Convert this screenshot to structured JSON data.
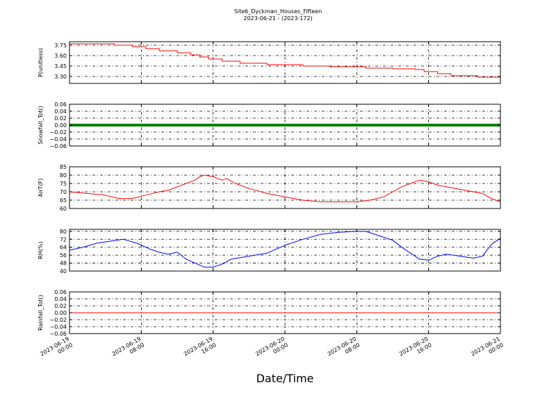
{
  "chart_data": {
    "type": "line",
    "title": "Site6_Dyckman_Houses_Fifteen",
    "subtitle": "2023-06-21 - (2023-172)",
    "xlabel": "Date/Time",
    "x_ticks": [
      "2023-06-19 00:00",
      "2023-06-19 08:00",
      "2023-06-19 16:00",
      "2023-06-20 00:00",
      "2023-06-20 08:00",
      "2023-06-20 16:00",
      "2023-06-21 00:00"
    ],
    "x_range": [
      "2023-06-19 00:00",
      "2023-06-21 00:00"
    ],
    "grid": true,
    "panels": [
      {
        "ylabel": "P(unitless)",
        "ylim": [
          3.2,
          3.8
        ],
        "yticks": [
          "3.30",
          "3.45",
          "3.60",
          "3.75"
        ],
        "series": [
          {
            "color": "#ff0000",
            "step": true,
            "x": [
              "2023-06-19 00:00",
              "2023-06-19 05:00",
              "2023-06-19 07:00",
              "2023-06-19 08:30",
              "2023-06-19 10:00",
              "2023-06-19 12:00",
              "2023-06-19 13:30",
              "2023-06-19 14:30",
              "2023-06-19 15:30",
              "2023-06-19 17:00",
              "2023-06-19 19:00",
              "2023-06-19 22:00",
              "2023-06-20 02:00",
              "2023-06-20 05:00",
              "2023-06-20 09:00",
              "2023-06-20 12:00",
              "2023-06-20 14:30",
              "2023-06-20 15:30",
              "2023-06-20 17:00",
              "2023-06-20 18:30",
              "2023-06-20 21:30",
              "2023-06-21 00:00"
            ],
            "y": [
              3.77,
              3.75,
              3.73,
              3.7,
              3.67,
              3.64,
              3.61,
              3.58,
              3.55,
              3.52,
              3.49,
              3.47,
              3.45,
              3.44,
              3.42,
              3.41,
              3.4,
              3.37,
              3.34,
              3.31,
              3.29,
              3.29
            ]
          }
        ]
      },
      {
        "ylabel": "Snowfall_Tot()",
        "ylim": [
          -0.06,
          0.06
        ],
        "yticks": [
          "−0.06",
          "−0.04",
          "−0.02",
          "0.00",
          "0.02",
          "0.04",
          "0.06"
        ],
        "series": [
          {
            "color": "#008000",
            "thick": true,
            "x": [
              "2023-06-19 00:00",
              "2023-06-21 00:00"
            ],
            "y": [
              0,
              0
            ]
          }
        ]
      },
      {
        "ylabel": "AirT(F)",
        "ylim": [
          60,
          85
        ],
        "yticks": [
          "60",
          "65",
          "70",
          "75",
          "80",
          "85"
        ],
        "series": [
          {
            "color": "#ff0000",
            "x": [
              "2023-06-19 00:00",
              "2023-06-19 02:00",
              "2023-06-19 04:00",
              "2023-06-19 05:30",
              "2023-06-19 07:00",
              "2023-06-19 08:30",
              "2023-06-19 10:00",
              "2023-06-19 11:00",
              "2023-06-19 12:00",
              "2023-06-19 13:00",
              "2023-06-19 14:00",
              "2023-06-19 14:30",
              "2023-06-19 15:00",
              "2023-06-19 16:00",
              "2023-06-19 17:00",
              "2023-06-19 17:30",
              "2023-06-19 18:30",
              "2023-06-19 20:00",
              "2023-06-19 22:00",
              "2023-06-20 00:00",
              "2023-06-20 02:00",
              "2023-06-20 04:00",
              "2023-06-20 06:00",
              "2023-06-20 08:00",
              "2023-06-20 09:30",
              "2023-06-20 11:00",
              "2023-06-20 12:00",
              "2023-06-20 13:00",
              "2023-06-20 14:00",
              "2023-06-20 15:00",
              "2023-06-20 16:00",
              "2023-06-20 17:00",
              "2023-06-20 18:00",
              "2023-06-20 20:00",
              "2023-06-20 22:00",
              "2023-06-20 23:00",
              "2023-06-21 00:00"
            ],
            "y": [
              70,
              69,
              68,
              66,
              66,
              68,
              70,
              71,
              73,
              75,
              77,
              79,
              80,
              79,
              77,
              78,
              75,
              72,
              69,
              67,
              65,
              64,
              64,
              64,
              65,
              67,
              70,
              73,
              75,
              77,
              76,
              74,
              73,
              71,
              69,
              66,
              64
            ]
          }
        ]
      },
      {
        "ylabel": "RH(%)",
        "ylim": [
          40,
          82
        ],
        "yticks": [
          "40",
          "48",
          "56",
          "64",
          "72",
          "80"
        ],
        "series": [
          {
            "color": "#0000ff",
            "x": [
              "2023-06-19 00:00",
              "2023-06-19 01:30",
              "2023-06-19 03:00",
              "2023-06-19 04:30",
              "2023-06-19 06:00",
              "2023-06-19 07:30",
              "2023-06-19 09:00",
              "2023-06-19 10:00",
              "2023-06-19 11:00",
              "2023-06-19 12:00",
              "2023-06-19 13:00",
              "2023-06-19 14:00",
              "2023-06-19 15:00",
              "2023-06-19 16:00",
              "2023-06-19 17:00",
              "2023-06-19 18:00",
              "2023-06-19 20:00",
              "2023-06-19 22:00",
              "2023-06-20 00:00",
              "2023-06-20 02:00",
              "2023-06-20 04:00",
              "2023-06-20 06:00",
              "2023-06-20 08:00",
              "2023-06-20 09:00",
              "2023-06-20 10:00",
              "2023-06-20 11:00",
              "2023-06-20 12:00",
              "2023-06-20 13:00",
              "2023-06-20 14:00",
              "2023-06-20 15:00",
              "2023-06-20 16:00",
              "2023-06-20 17:00",
              "2023-06-20 18:00",
              "2023-06-20 19:30",
              "2023-06-20 21:00",
              "2023-06-20 22:00",
              "2023-06-20 23:00",
              "2023-06-21 00:00"
            ],
            "y": [
              61,
              64,
              68,
              70,
              72,
              68,
              62,
              59,
              57,
              59,
              52,
              48,
              44,
              44,
              47,
              52,
              55,
              58,
              66,
              72,
              77,
              79,
              80,
              80,
              77,
              74,
              71,
              64,
              58,
              52,
              51,
              55,
              57,
              55,
              53,
              55,
              67,
              73
            ]
          }
        ]
      },
      {
        "ylabel": "Rainfall_Tot()",
        "ylim": [
          -0.06,
          0.06
        ],
        "yticks": [
          "−0.06",
          "−0.04",
          "−0.02",
          "0.00",
          "0.02",
          "0.04",
          "0.06"
        ],
        "series": [
          {
            "color": "#ff0000",
            "x": [
              "2023-06-19 00:00",
              "2023-06-21 00:00"
            ],
            "y": [
              0,
              0
            ]
          }
        ]
      }
    ]
  }
}
